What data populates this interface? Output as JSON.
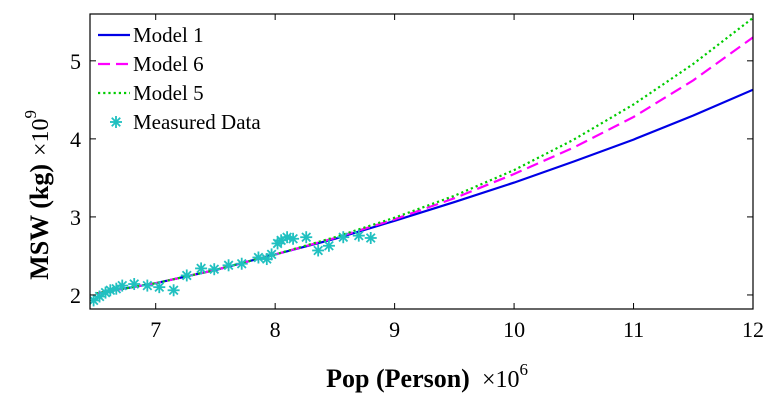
{
  "chart_data": {
    "type": "line",
    "title": "",
    "xlabel": "Pop (Person)",
    "x_exponent": "×10",
    "x_exponent_power": "6",
    "ylabel": "MSW (kg)",
    "y_exponent": "×10",
    "y_exponent_power": "9",
    "xlim": [
      6.45,
      12
    ],
    "ylim": [
      1.82,
      5.6
    ],
    "x_ticks": [
      7,
      8,
      9,
      10,
      11,
      12
    ],
    "x_tick_labels": [
      "7",
      "8",
      "9",
      "10",
      "11",
      "12"
    ],
    "y_ticks": [
      2,
      3,
      4,
      5
    ],
    "y_tick_labels": [
      "2",
      "3",
      "4",
      "5"
    ],
    "grid": false,
    "legend_position": "top-left",
    "series": [
      {
        "name": "Model 1",
        "style": "solid",
        "color": "#0000e6",
        "x": [
          6.5,
          7.0,
          7.5,
          8.0,
          8.5,
          9.0,
          9.5,
          10.0,
          10.5,
          11.0,
          11.5,
          12.0
        ],
        "y": [
          2.02,
          2.15,
          2.32,
          2.52,
          2.72,
          2.95,
          3.19,
          3.44,
          3.71,
          3.99,
          4.3,
          4.63
        ]
      },
      {
        "name": "Model 6",
        "style": "dashed",
        "color": "#ff00ff",
        "x": [
          6.5,
          7.0,
          7.5,
          8.0,
          8.5,
          9.0,
          9.5,
          10.0,
          10.5,
          11.0,
          11.5,
          12.0
        ],
        "y": [
          2.02,
          2.15,
          2.32,
          2.52,
          2.73,
          2.97,
          3.24,
          3.55,
          3.89,
          4.28,
          4.75,
          5.3
        ]
      },
      {
        "name": "Model 5",
        "style": "dotted",
        "color": "#00cc00",
        "x": [
          6.5,
          7.0,
          7.5,
          8.0,
          8.5,
          9.0,
          9.5,
          10.0,
          10.5,
          11.0,
          11.5,
          12.0
        ],
        "y": [
          2.02,
          2.15,
          2.32,
          2.52,
          2.74,
          2.99,
          3.27,
          3.6,
          3.99,
          4.44,
          4.96,
          5.55
        ]
      },
      {
        "name": "Measured Data",
        "style": "markers",
        "marker": "*",
        "color": "#20c0c0",
        "x": [
          6.48,
          6.53,
          6.58,
          6.62,
          6.67,
          6.72,
          6.82,
          6.93,
          7.03,
          7.15,
          7.26,
          7.38,
          7.49,
          7.61,
          7.72,
          7.86,
          7.93,
          7.97,
          8.02,
          8.05,
          8.1,
          8.15,
          8.26,
          8.36,
          8.45,
          8.57,
          8.7,
          8.8
        ],
        "y": [
          1.93,
          1.98,
          2.03,
          2.06,
          2.08,
          2.12,
          2.14,
          2.12,
          2.1,
          2.06,
          2.25,
          2.34,
          2.33,
          2.38,
          2.4,
          2.48,
          2.46,
          2.52,
          2.66,
          2.7,
          2.74,
          2.72,
          2.74,
          2.57,
          2.63,
          2.74,
          2.76,
          2.73
        ]
      }
    ]
  }
}
